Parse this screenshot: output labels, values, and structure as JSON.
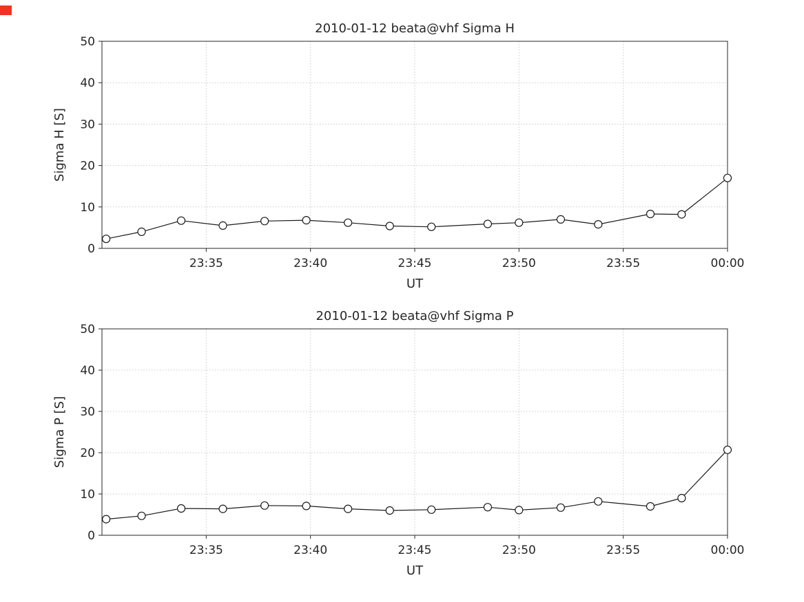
{
  "figure": {
    "background": "#ffffff",
    "indicator_color": "#ee3524",
    "axis_color": "#262626",
    "grid_color": "#c9c9c9",
    "line_color": "#1a1a1a",
    "marker_fill": "#ffffff"
  },
  "chart_data": [
    {
      "type": "line",
      "title": "2010-01-12  beata@vhf Sigma H",
      "xlabel": "UT",
      "ylabel": "Sigma H [S]",
      "ylim": [
        0,
        50
      ],
      "yticks": [
        0,
        10,
        20,
        30,
        40,
        50
      ],
      "xlim_minutes_after_2330": [
        0,
        30
      ],
      "xticks": [
        {
          "minute": 5,
          "label": "23:35"
        },
        {
          "minute": 10,
          "label": "23:40"
        },
        {
          "minute": 15,
          "label": "23:45"
        },
        {
          "minute": 20,
          "label": "23:50"
        },
        {
          "minute": 25,
          "label": "23:55"
        },
        {
          "minute": 30,
          "label": "00:00"
        }
      ],
      "grid": true,
      "legend": "none",
      "marker": "open-circle",
      "x_minutes_after_2330": [
        0.2,
        1.9,
        3.8,
        5.8,
        7.8,
        9.8,
        11.8,
        13.8,
        15.8,
        18.5,
        20.0,
        22.0,
        23.8,
        26.3,
        27.8,
        30.0
      ],
      "values": [
        2.3,
        4.0,
        6.7,
        5.5,
        6.6,
        6.8,
        6.2,
        5.4,
        5.2,
        5.9,
        6.2,
        7.0,
        5.8,
        8.3,
        8.2,
        17.0
      ]
    },
    {
      "type": "line",
      "title": "2010-01-12  beata@vhf Sigma P",
      "xlabel": "UT",
      "ylabel": "Sigma P [S]",
      "ylim": [
        0,
        50
      ],
      "yticks": [
        0,
        10,
        20,
        30,
        40,
        50
      ],
      "xlim_minutes_after_2330": [
        0,
        30
      ],
      "xticks": [
        {
          "minute": 5,
          "label": "23:35"
        },
        {
          "minute": 10,
          "label": "23:40"
        },
        {
          "minute": 15,
          "label": "23:45"
        },
        {
          "minute": 20,
          "label": "23:50"
        },
        {
          "minute": 25,
          "label": "23:55"
        },
        {
          "minute": 30,
          "label": "00:00"
        }
      ],
      "grid": true,
      "legend": "none",
      "marker": "open-circle",
      "x_minutes_after_2330": [
        0.2,
        1.9,
        3.8,
        5.8,
        7.8,
        9.8,
        11.8,
        13.8,
        15.8,
        18.5,
        20.0,
        22.0,
        23.8,
        26.3,
        27.8,
        30.0
      ],
      "values": [
        3.9,
        4.7,
        6.5,
        6.4,
        7.2,
        7.1,
        6.4,
        6.0,
        6.2,
        6.8,
        6.1,
        6.7,
        8.2,
        7.0,
        9.0,
        20.7
      ]
    }
  ]
}
